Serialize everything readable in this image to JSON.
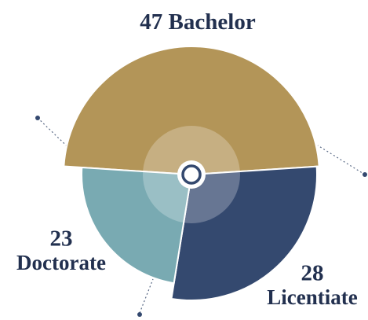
{
  "chart_data": {
    "type": "pie",
    "categories": [
      "Bachelor",
      "Licentiate",
      "Doctorate"
    ],
    "values": [
      47,
      28,
      23
    ],
    "colors": [
      "#b39558",
      "#34496f",
      "#79aab2"
    ]
  }
}
